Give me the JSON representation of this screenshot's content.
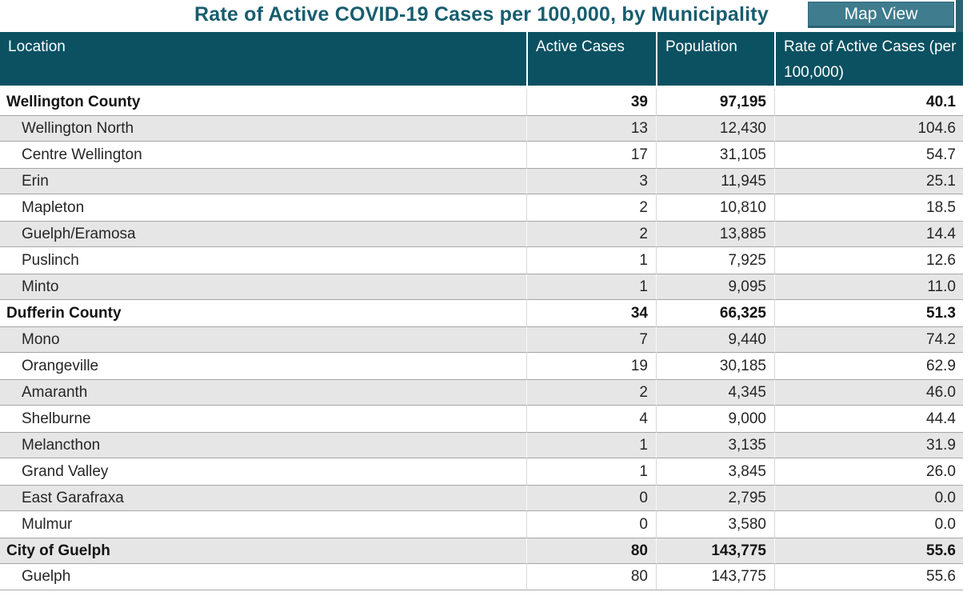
{
  "header": {
    "title": "Rate of Active COVID-19 Cases per 100,000, by Municipality",
    "map_view_label": "Map View",
    "title_color": "#175d6f",
    "header_bg_color": "#0b5162",
    "button_color": "#3e7c8e",
    "alt_row_color": "#e6e6e6"
  },
  "table": {
    "columns": {
      "location": "Location",
      "active_cases": "Active Cases",
      "population": "Population",
      "rate": "Rate of Active Cases (per 100,000)"
    },
    "rows": [
      {
        "location": "Wellington County",
        "active_cases": "39",
        "population": "97,195",
        "rate": "40.1",
        "level": "county"
      },
      {
        "location": "Wellington North",
        "active_cases": "13",
        "population": "12,430",
        "rate": "104.6",
        "level": "municipality"
      },
      {
        "location": "Centre Wellington",
        "active_cases": "17",
        "population": "31,105",
        "rate": "54.7",
        "level": "municipality"
      },
      {
        "location": "Erin",
        "active_cases": "3",
        "population": "11,945",
        "rate": "25.1",
        "level": "municipality"
      },
      {
        "location": "Mapleton",
        "active_cases": "2",
        "population": "10,810",
        "rate": "18.5",
        "level": "municipality"
      },
      {
        "location": "Guelph/Eramosa",
        "active_cases": "2",
        "population": "13,885",
        "rate": "14.4",
        "level": "municipality"
      },
      {
        "location": "Puslinch",
        "active_cases": "1",
        "population": "7,925",
        "rate": "12.6",
        "level": "municipality"
      },
      {
        "location": "Minto",
        "active_cases": "1",
        "population": "9,095",
        "rate": "11.0",
        "level": "municipality"
      },
      {
        "location": "Dufferin County",
        "active_cases": "34",
        "population": "66,325",
        "rate": "51.3",
        "level": "county"
      },
      {
        "location": "Mono",
        "active_cases": "7",
        "population": "9,440",
        "rate": "74.2",
        "level": "municipality"
      },
      {
        "location": "Orangeville",
        "active_cases": "19",
        "population": "30,185",
        "rate": "62.9",
        "level": "municipality"
      },
      {
        "location": "Amaranth",
        "active_cases": "2",
        "population": "4,345",
        "rate": "46.0",
        "level": "municipality"
      },
      {
        "location": "Shelburne",
        "active_cases": "4",
        "population": "9,000",
        "rate": "44.4",
        "level": "municipality"
      },
      {
        "location": "Melancthon",
        "active_cases": "1",
        "population": "3,135",
        "rate": "31.9",
        "level": "municipality"
      },
      {
        "location": "Grand Valley",
        "active_cases": "1",
        "population": "3,845",
        "rate": "26.0",
        "level": "municipality"
      },
      {
        "location": "East Garafraxa",
        "active_cases": "0",
        "population": "2,795",
        "rate": "0.0",
        "level": "municipality"
      },
      {
        "location": "Mulmur",
        "active_cases": "0",
        "population": "3,580",
        "rate": "0.0",
        "level": "municipality"
      },
      {
        "location": "City of Guelph",
        "active_cases": "80",
        "population": "143,775",
        "rate": "55.6",
        "level": "county"
      },
      {
        "location": "Guelph",
        "active_cases": "80",
        "population": "143,775",
        "rate": "55.6",
        "level": "municipality"
      }
    ]
  }
}
